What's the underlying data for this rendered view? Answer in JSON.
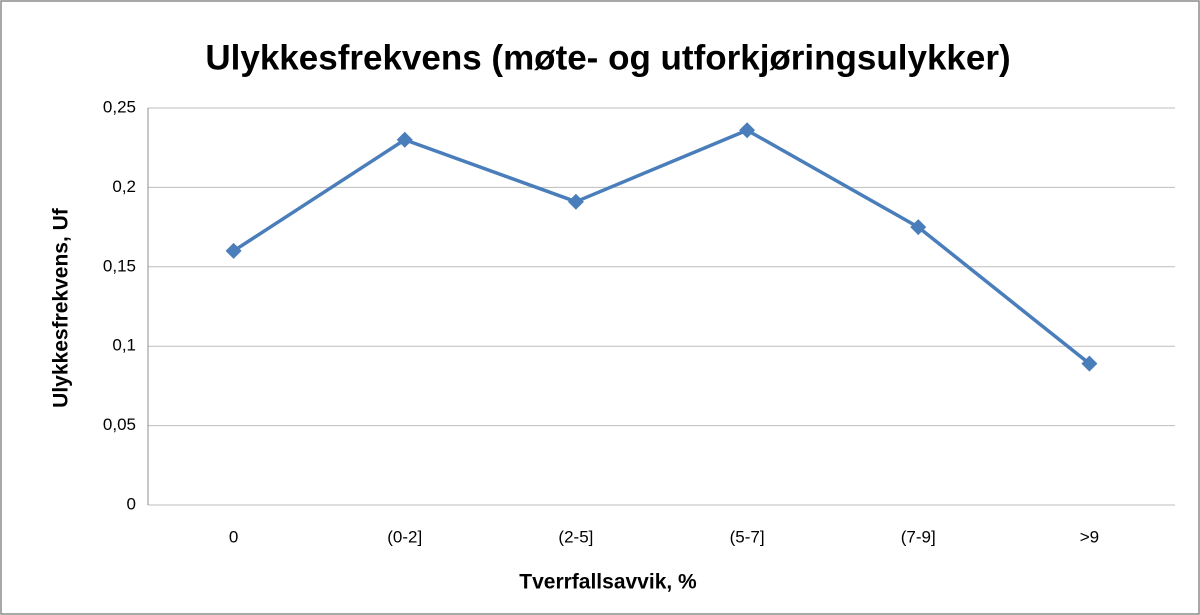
{
  "chart_data": {
    "type": "line",
    "title": "Ulykkesfrekvens (møte- og utforkjøringsulykker)",
    "x_label": "Tverrfallsavvik, %",
    "y_label": "Ulykkesfrekvens, Uf",
    "categories": [
      "0",
      "(0-2]",
      "(2-5]",
      "(5-7]",
      "(7-9]",
      ">9"
    ],
    "series": [
      {
        "name": "Ulykkesfrekvens",
        "color": "#4a7ebb",
        "values": [
          0.16,
          0.23,
          0.191,
          0.236,
          0.175,
          0.089
        ]
      }
    ],
    "ylim": [
      0,
      0.25
    ],
    "yticks": [
      0,
      {
        "value": 0.05,
        "label": "0,05"
      },
      {
        "value": 0.1,
        "label": "0,1"
      },
      {
        "value": 0.15,
        "label": "0,15"
      },
      {
        "value": 0.2,
        "label": "0,2"
      },
      {
        "value": 0.25,
        "label": "0,25"
      }
    ],
    "grid": true
  }
}
